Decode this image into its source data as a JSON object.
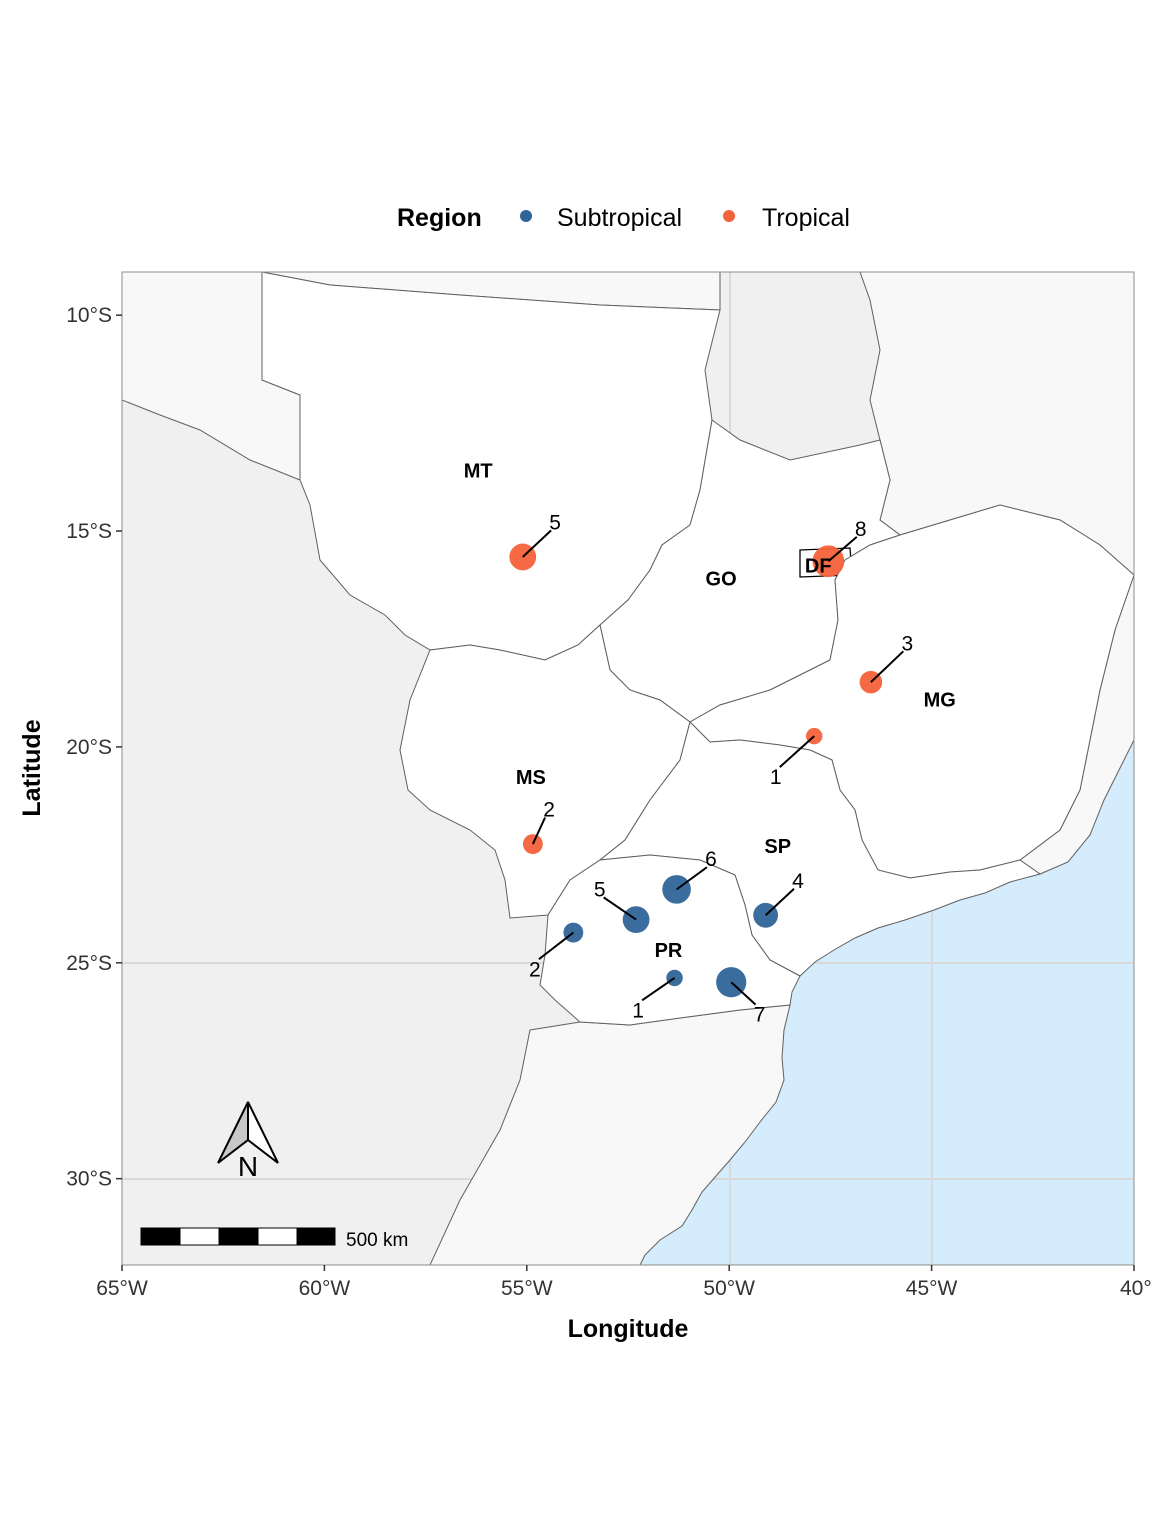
{
  "legend": {
    "title": "Region",
    "items": [
      {
        "label": "Subtropical",
        "color": "#2f6599"
      },
      {
        "label": "Tropical",
        "color": "#f4623a"
      }
    ]
  },
  "axes": {
    "xlabel": "Longitude",
    "ylabel": "Latitude",
    "xticks": [
      {
        "value": -65,
        "label": "65°W"
      },
      {
        "value": -60,
        "label": "60°W"
      },
      {
        "value": -55,
        "label": "55°W"
      },
      {
        "value": -50,
        "label": "50°W"
      },
      {
        "value": -45,
        "label": "45°W"
      },
      {
        "value": -40,
        "label": "40°W"
      }
    ],
    "yticks": [
      {
        "value": -10,
        "label": "10°S"
      },
      {
        "value": -15,
        "label": "15°S"
      },
      {
        "value": -20,
        "label": "20°S"
      },
      {
        "value": -25,
        "label": "25°S"
      },
      {
        "value": -30,
        "label": "30°S"
      }
    ],
    "xlim": [
      -65,
      -40
    ],
    "ylim": [
      -32,
      -9
    ]
  },
  "colors": {
    "ocean": "#d4ecfb",
    "study_states": "#ffffff",
    "other_states": "#f8f8f8",
    "foreign": "#f0f0f0",
    "border": "#606060",
    "graticule": "#d9d9d9"
  },
  "states": [
    {
      "abbr": "MT",
      "lon": -56.2,
      "lat": -13.6
    },
    {
      "abbr": "GO",
      "lon": -50.2,
      "lat": -16.1
    },
    {
      "abbr": "DF",
      "lon": -47.8,
      "lat": -15.8
    },
    {
      "abbr": "MG",
      "lon": -44.8,
      "lat": -18.9
    },
    {
      "abbr": "MS",
      "lon": -54.9,
      "lat": -20.7
    },
    {
      "abbr": "SP",
      "lon": -48.8,
      "lat": -22.3
    },
    {
      "abbr": "PR",
      "lon": -51.5,
      "lat": -24.7
    }
  ],
  "sites": [
    {
      "region": "Tropical",
      "count": 5,
      "lon": -55.1,
      "lat": -15.6
    },
    {
      "region": "Tropical",
      "count": 8,
      "lon": -47.55,
      "lat": -15.7
    },
    {
      "region": "Tropical",
      "count": 3,
      "lon": -46.5,
      "lat": -18.5
    },
    {
      "region": "Tropical",
      "count": 1,
      "lon": -47.9,
      "lat": -19.75
    },
    {
      "region": "Tropical",
      "count": 2,
      "lon": -54.85,
      "lat": -22.25
    },
    {
      "region": "Subtropical",
      "count": 6,
      "lon": -51.3,
      "lat": -23.3
    },
    {
      "region": "Subtropical",
      "count": 5,
      "lon": -52.3,
      "lat": -24.0
    },
    {
      "region": "Subtropical",
      "count": 4,
      "lon": -49.1,
      "lat": -23.9
    },
    {
      "region": "Subtropical",
      "count": 2,
      "lon": -53.85,
      "lat": -24.3
    },
    {
      "region": "Subtropical",
      "count": 1,
      "lon": -51.35,
      "lat": -25.35
    },
    {
      "region": "Subtropical",
      "count": 7,
      "lon": -49.95,
      "lat": -25.45
    }
  ],
  "count_labels": [
    {
      "text": "5",
      "lon": -54.3,
      "lat": -14.8
    },
    {
      "text": "8",
      "lon": -46.75,
      "lat": -14.95
    },
    {
      "text": "3",
      "lon": -45.6,
      "lat": -17.6
    },
    {
      "text": "1",
      "lon": -48.85,
      "lat": -20.7
    },
    {
      "text": "2",
      "lon": -54.45,
      "lat": -21.45
    },
    {
      "text": "6",
      "lon": -50.45,
      "lat": -22.6
    },
    {
      "text": "5",
      "lon": -53.2,
      "lat": -23.3
    },
    {
      "text": "4",
      "lon": -48.3,
      "lat": -23.1
    },
    {
      "text": "2",
      "lon": -54.8,
      "lat": -25.15
    },
    {
      "text": "1",
      "lon": -52.25,
      "lat": -26.1
    },
    {
      "text": "7",
      "lon": -49.25,
      "lat": -26.2
    }
  ],
  "scale_bar": {
    "label": "500 km"
  },
  "north_arrow": {
    "label": "N"
  }
}
